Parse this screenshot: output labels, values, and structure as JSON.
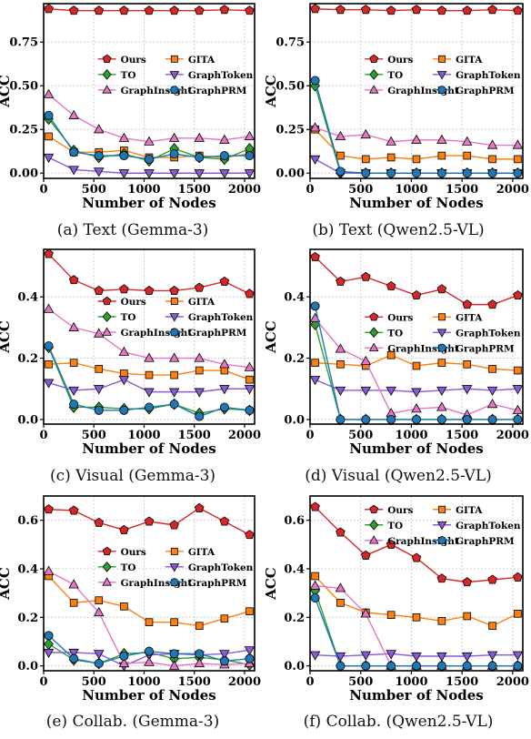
{
  "styles": {
    "Ours": {
      "color": "#d62728",
      "marker": "pentagon"
    },
    "GITA": {
      "color": "#ff7f0e",
      "marker": "square"
    },
    "TO": {
      "color": "#2ca02c",
      "marker": "diamond"
    },
    "GraphToken": {
      "color": "#8a5bd6",
      "marker": "triangle-down"
    },
    "GraphInsight": {
      "color": "#e377c2",
      "marker": "triangle-up"
    },
    "GraphPRM": {
      "color": "#1f77b4",
      "marker": "circle"
    }
  },
  "chart_data": [
    {
      "type": "line",
      "caption": "(a) Text (Gemma-3)",
      "xlabel": "Number of Nodes",
      "ylabel": "ACC",
      "xlim": [
        0,
        2100
      ],
      "ylim": [
        -0.03,
        0.97
      ],
      "xticks": [
        0,
        500,
        1000,
        1500,
        2000
      ],
      "yticks": [
        0.0,
        0.25,
        0.5,
        0.75
      ],
      "ytick_labels": [
        "0.00",
        "0.25",
        "0.50",
        "0.75"
      ],
      "grid": true,
      "legend": {
        "placement": "center-right",
        "cols": 2,
        "top_frac": 0.27
      },
      "series": [
        {
          "name": "Ours",
          "x": [
            50,
            300,
            550,
            800,
            1050,
            1300,
            1550,
            1800,
            2050
          ],
          "y": [
            0.94,
            0.93,
            0.93,
            0.93,
            0.93,
            0.93,
            0.93,
            0.935,
            0.93
          ]
        },
        {
          "name": "GITA",
          "x": [
            50,
            300,
            550,
            800,
            1050,
            1300,
            1550,
            1800,
            2050
          ],
          "y": [
            0.21,
            0.12,
            0.12,
            0.13,
            0.09,
            0.09,
            0.1,
            0.09,
            0.11
          ]
        },
        {
          "name": "TO",
          "x": [
            50,
            300,
            550,
            800,
            1050,
            1300,
            1550,
            1800,
            2050
          ],
          "y": [
            0.31,
            0.13,
            0.09,
            0.11,
            0.07,
            0.14,
            0.09,
            0.08,
            0.14
          ]
        },
        {
          "name": "GraphToken",
          "x": [
            50,
            300,
            550,
            800,
            1050,
            1300,
            1550,
            1800,
            2050
          ],
          "y": [
            0.09,
            0.02,
            0.01,
            0.0,
            0.0,
            0.0,
            0.0,
            0.0,
            0.0
          ]
        },
        {
          "name": "GraphInsight",
          "x": [
            50,
            300,
            550,
            800,
            1050,
            1300,
            1550,
            1800,
            2050
          ],
          "y": [
            0.45,
            0.33,
            0.25,
            0.2,
            0.18,
            0.2,
            0.2,
            0.19,
            0.21
          ]
        },
        {
          "name": "GraphPRM",
          "x": [
            50,
            300,
            550,
            800,
            1050,
            1300,
            1550,
            1800,
            2050
          ],
          "y": [
            0.33,
            0.12,
            0.1,
            0.1,
            0.08,
            0.11,
            0.09,
            0.1,
            0.1
          ]
        }
      ]
    },
    {
      "type": "line",
      "caption": "(b) Text (Qwen2.5-VL)",
      "xlabel": "Number of Nodes",
      "ylabel": "ACC",
      "xlim": [
        0,
        2100
      ],
      "ylim": [
        -0.03,
        0.97
      ],
      "xticks": [
        0,
        500,
        1000,
        1500,
        2000
      ],
      "yticks": [
        0.0,
        0.25,
        0.5,
        0.75
      ],
      "ytick_labels": [
        "0.00",
        "0.25",
        "0.50",
        "0.75"
      ],
      "grid": true,
      "legend": {
        "placement": "center-right",
        "cols": 2,
        "top_frac": 0.27
      },
      "series": [
        {
          "name": "Ours",
          "x": [
            50,
            300,
            550,
            800,
            1050,
            1300,
            1550,
            1800,
            2050
          ],
          "y": [
            0.94,
            0.935,
            0.935,
            0.93,
            0.935,
            0.93,
            0.93,
            0.935,
            0.93
          ]
        },
        {
          "name": "GITA",
          "x": [
            50,
            300,
            550,
            800,
            1050,
            1300,
            1550,
            1800,
            2050
          ],
          "y": [
            0.25,
            0.1,
            0.08,
            0.09,
            0.08,
            0.1,
            0.1,
            0.08,
            0.08
          ]
        },
        {
          "name": "TO",
          "x": [
            50,
            300,
            550,
            800,
            1050,
            1300,
            1550,
            1800,
            2050
          ],
          "y": [
            0.5,
            0.0,
            0.0,
            0.0,
            0.0,
            0.0,
            0.0,
            0.0,
            0.0
          ]
        },
        {
          "name": "GraphToken",
          "x": [
            50,
            300,
            550,
            800,
            1050,
            1300,
            1550,
            1800,
            2050
          ],
          "y": [
            0.08,
            0.0,
            0.0,
            0.0,
            0.0,
            0.0,
            0.0,
            0.0,
            0.0
          ]
        },
        {
          "name": "GraphInsight",
          "x": [
            50,
            300,
            550,
            800,
            1050,
            1300,
            1550,
            1800,
            2050
          ],
          "y": [
            0.26,
            0.21,
            0.22,
            0.18,
            0.19,
            0.19,
            0.18,
            0.16,
            0.16
          ]
        },
        {
          "name": "GraphPRM",
          "x": [
            50,
            300,
            550,
            800,
            1050,
            1300,
            1550,
            1800,
            2050
          ],
          "y": [
            0.53,
            0.01,
            0.0,
            0.0,
            0.0,
            0.0,
            0.0,
            0.0,
            0.0
          ]
        }
      ]
    },
    {
      "type": "line",
      "caption": "(c) Visual (Gemma-3)",
      "xlabel": "Number of Nodes",
      "ylabel": "ACC",
      "xlim": [
        0,
        2100
      ],
      "ylim": [
        -0.015,
        0.555
      ],
      "xticks": [
        0,
        500,
        1000,
        1500,
        2000
      ],
      "yticks": [
        0.0,
        0.2,
        0.4
      ],
      "ytick_labels": [
        "0.0",
        "0.2",
        "0.4"
      ],
      "grid": true,
      "legend": {
        "placement": "center-right",
        "cols": 2,
        "top_frac": 0.25
      },
      "series": [
        {
          "name": "Ours",
          "x": [
            50,
            300,
            550,
            800,
            1050,
            1300,
            1550,
            1800,
            2050
          ],
          "y": [
            0.54,
            0.455,
            0.42,
            0.425,
            0.42,
            0.42,
            0.43,
            0.45,
            0.41
          ]
        },
        {
          "name": "GITA",
          "x": [
            50,
            300,
            550,
            800,
            1050,
            1300,
            1550,
            1800,
            2050
          ],
          "y": [
            0.18,
            0.185,
            0.165,
            0.15,
            0.145,
            0.145,
            0.16,
            0.16,
            0.13
          ]
        },
        {
          "name": "TO",
          "x": [
            50,
            300,
            550,
            800,
            1050,
            1300,
            1550,
            1800,
            2050
          ],
          "y": [
            0.235,
            0.04,
            0.04,
            0.035,
            0.035,
            0.05,
            0.02,
            0.035,
            0.03
          ]
        },
        {
          "name": "GraphToken",
          "x": [
            50,
            300,
            550,
            800,
            1050,
            1300,
            1550,
            1800,
            2050
          ],
          "y": [
            0.12,
            0.095,
            0.1,
            0.13,
            0.09,
            0.09,
            0.09,
            0.1,
            0.1
          ]
        },
        {
          "name": "GraphInsight",
          "x": [
            50,
            300,
            550,
            800,
            1050,
            1300,
            1550,
            1800,
            2050
          ],
          "y": [
            0.36,
            0.3,
            0.28,
            0.22,
            0.2,
            0.2,
            0.2,
            0.18,
            0.17
          ]
        },
        {
          "name": "GraphPRM",
          "x": [
            50,
            300,
            550,
            800,
            1050,
            1300,
            1550,
            1800,
            2050
          ],
          "y": [
            0.24,
            0.05,
            0.03,
            0.03,
            0.04,
            0.05,
            0.01,
            0.04,
            0.03
          ]
        }
      ]
    },
    {
      "type": "line",
      "caption": "(d) Visual (Qwen2.5-VL)",
      "xlabel": "Number of Nodes",
      "ylabel": "ACC",
      "xlim": [
        0,
        2100
      ],
      "ylim": [
        -0.015,
        0.555
      ],
      "xticks": [
        0,
        500,
        1000,
        1500,
        2000
      ],
      "yticks": [
        0.0,
        0.2,
        0.4
      ],
      "ytick_labels": [
        "0.0",
        "0.2",
        "0.4"
      ],
      "grid": true,
      "legend": {
        "placement": "center-right",
        "cols": 2,
        "top_frac": 0.34
      },
      "series": [
        {
          "name": "Ours",
          "x": [
            50,
            300,
            550,
            800,
            1050,
            1300,
            1550,
            1800,
            2050
          ],
          "y": [
            0.53,
            0.45,
            0.465,
            0.435,
            0.405,
            0.425,
            0.375,
            0.375,
            0.405
          ]
        },
        {
          "name": "GITA",
          "x": [
            50,
            300,
            550,
            800,
            1050,
            1300,
            1550,
            1800,
            2050
          ],
          "y": [
            0.185,
            0.18,
            0.175,
            0.21,
            0.175,
            0.185,
            0.18,
            0.165,
            0.16
          ]
        },
        {
          "name": "TO",
          "x": [
            50,
            300,
            550,
            800,
            1050,
            1300,
            1550,
            1800,
            2050
          ],
          "y": [
            0.31,
            0.0,
            0.0,
            0.0,
            0.0,
            0.0,
            0.0,
            0.0,
            0.0
          ]
        },
        {
          "name": "GraphToken",
          "x": [
            50,
            300,
            550,
            800,
            1050,
            1300,
            1550,
            1800,
            2050
          ],
          "y": [
            0.13,
            0.095,
            0.095,
            0.095,
            0.09,
            0.095,
            0.1,
            0.095,
            0.1
          ]
        },
        {
          "name": "GraphInsight",
          "x": [
            50,
            300,
            550,
            800,
            1050,
            1300,
            1550,
            1800,
            2050
          ],
          "y": [
            0.33,
            0.23,
            0.19,
            0.02,
            0.035,
            0.04,
            0.015,
            0.05,
            0.03
          ]
        },
        {
          "name": "GraphPRM",
          "x": [
            50,
            300,
            550,
            800,
            1050,
            1300,
            1550,
            1800,
            2050
          ],
          "y": [
            0.37,
            0.0,
            0.0,
            0.0,
            0.0,
            0.0,
            0.0,
            0.0,
            0.0
          ]
        }
      ]
    },
    {
      "type": "line",
      "caption": "(e) Collab. (Gemma-3)",
      "xlabel": "Number of Nodes",
      "ylabel": "ACC",
      "xlim": [
        0,
        2100
      ],
      "ylim": [
        -0.02,
        0.7
      ],
      "xticks": [
        0,
        500,
        1000,
        1500,
        2000
      ],
      "yticks": [
        0.0,
        0.2,
        0.4,
        0.6
      ],
      "ytick_labels": [
        "0.0",
        "0.2",
        "0.4",
        "0.6"
      ],
      "grid": true,
      "legend": {
        "placement": "center-right",
        "cols": 2,
        "top_frac": 0.27
      },
      "series": [
        {
          "name": "Ours",
          "x": [
            50,
            300,
            550,
            800,
            1050,
            1300,
            1550,
            1800,
            2050
          ],
          "y": [
            0.645,
            0.64,
            0.59,
            0.56,
            0.595,
            0.58,
            0.65,
            0.595,
            0.54
          ]
        },
        {
          "name": "GITA",
          "x": [
            50,
            300,
            550,
            800,
            1050,
            1300,
            1550,
            1800,
            2050
          ],
          "y": [
            0.37,
            0.26,
            0.27,
            0.245,
            0.18,
            0.18,
            0.165,
            0.195,
            0.225
          ]
        },
        {
          "name": "TO",
          "x": [
            50,
            300,
            550,
            800,
            1050,
            1300,
            1550,
            1800,
            2050
          ],
          "y": [
            0.09,
            0.025,
            0.01,
            0.05,
            0.055,
            0.03,
            0.035,
            0.025,
            0.005
          ]
        },
        {
          "name": "GraphToken",
          "x": [
            50,
            300,
            550,
            800,
            1050,
            1300,
            1550,
            1800,
            2050
          ],
          "y": [
            0.055,
            0.055,
            0.05,
            0.0,
            0.045,
            0.05,
            0.045,
            0.05,
            0.065
          ]
        },
        {
          "name": "GraphInsight",
          "x": [
            50,
            300,
            550,
            800,
            1050,
            1300,
            1550,
            1800,
            2050
          ],
          "y": [
            0.39,
            0.335,
            0.22,
            0.01,
            0.015,
            0.0,
            0.01,
            0.005,
            0.01
          ]
        },
        {
          "name": "GraphPRM",
          "x": [
            50,
            300,
            550,
            800,
            1050,
            1300,
            1550,
            1800,
            2050
          ],
          "y": [
            0.125,
            0.03,
            0.01,
            0.04,
            0.06,
            0.05,
            0.05,
            0.02,
            0.03
          ]
        }
      ]
    },
    {
      "type": "line",
      "caption": "(f) Collab. (Qwen2.5-VL)",
      "xlabel": "Number of Nodes",
      "ylabel": "ACC",
      "xlim": [
        0,
        2100
      ],
      "ylim": [
        -0.02,
        0.7
      ],
      "xticks": [
        0,
        500,
        1000,
        1500,
        2000
      ],
      "yticks": [
        0.0,
        0.2,
        0.4,
        0.6
      ],
      "ytick_labels": [
        "0.0",
        "0.2",
        "0.4",
        "0.6"
      ],
      "grid": true,
      "legend": {
        "placement": "top-right",
        "cols": 2,
        "top_frac": 0.03
      },
      "series": [
        {
          "name": "Ours",
          "x": [
            50,
            300,
            550,
            800,
            1050,
            1300,
            1550,
            1800,
            2050
          ],
          "y": [
            0.655,
            0.55,
            0.455,
            0.5,
            0.445,
            0.36,
            0.345,
            0.355,
            0.365
          ]
        },
        {
          "name": "GITA",
          "x": [
            50,
            300,
            550,
            800,
            1050,
            1300,
            1550,
            1800,
            2050
          ],
          "y": [
            0.37,
            0.26,
            0.22,
            0.21,
            0.2,
            0.185,
            0.205,
            0.165,
            0.215
          ]
        },
        {
          "name": "TO",
          "x": [
            50,
            300,
            550,
            800,
            1050,
            1300,
            1550,
            1800,
            2050
          ],
          "y": [
            0.31,
            0.0,
            0.0,
            0.0,
            0.0,
            0.0,
            0.0,
            0.0,
            0.0
          ]
        },
        {
          "name": "GraphToken",
          "x": [
            50,
            300,
            550,
            800,
            1050,
            1300,
            1550,
            1800,
            2050
          ],
          "y": [
            0.045,
            0.04,
            0.045,
            0.05,
            0.04,
            0.04,
            0.04,
            0.045,
            0.045
          ]
        },
        {
          "name": "GraphInsight",
          "x": [
            50,
            300,
            550,
            800,
            1050,
            1300,
            1550,
            1800,
            2050
          ],
          "y": [
            0.33,
            0.32,
            0.215,
            0.0,
            0.0,
            0.0,
            0.0,
            0.0,
            0.0
          ]
        },
        {
          "name": "GraphPRM",
          "x": [
            50,
            300,
            550,
            800,
            1050,
            1300,
            1550,
            1800,
            2050
          ],
          "y": [
            0.28,
            0.0,
            0.0,
            0.0,
            0.0,
            0.0,
            0.0,
            0.0,
            0.0
          ]
        }
      ]
    }
  ]
}
